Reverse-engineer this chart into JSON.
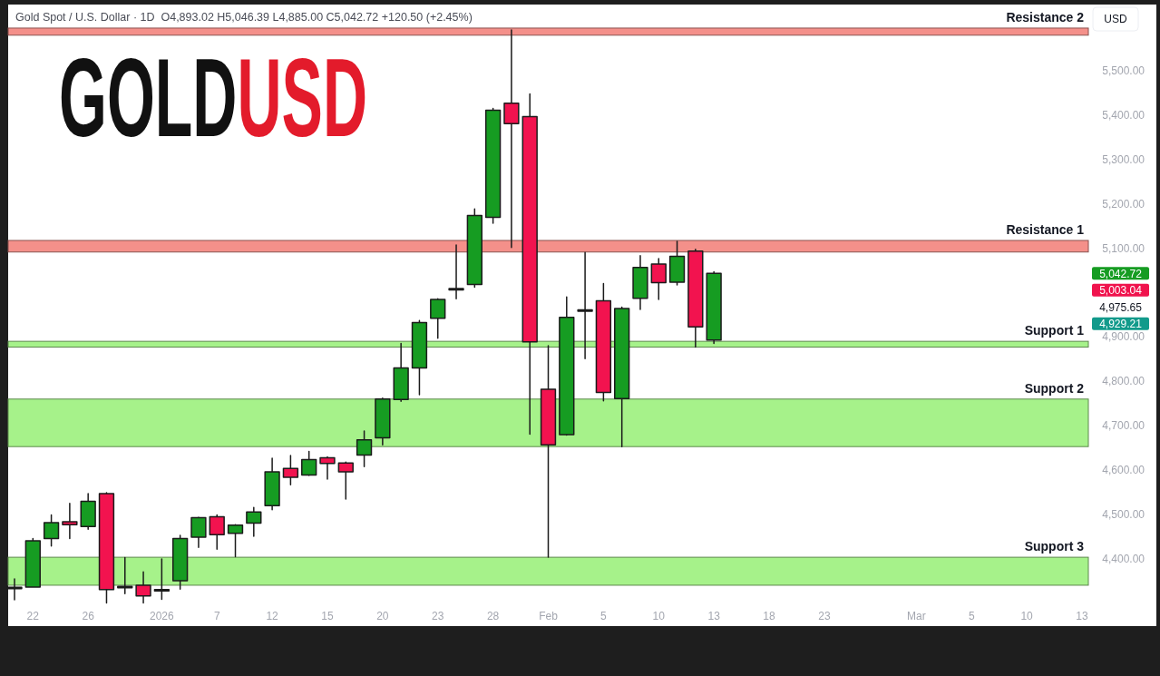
{
  "chart_data": {
    "type": "candlestick",
    "title": "GOLDUSD",
    "subtitle": "Gold Spot / U.S. Dollar · 1D  O4,893.02 H5,046.39 L4,885.00 C5,042.72 +120.50 (+2.45%)",
    "ylabel": "USD",
    "categories": [
      null,
      "22",
      null,
      null,
      "26",
      null,
      null,
      null,
      "2026",
      null,
      null,
      "7",
      null,
      null,
      "12",
      null,
      null,
      "15",
      null,
      null,
      "20",
      null,
      null,
      "23",
      null,
      null,
      "28",
      null,
      null,
      "Feb",
      null,
      null,
      "5",
      null,
      null,
      "10",
      null,
      null,
      "13",
      null,
      null,
      "18",
      null,
      null,
      "23",
      null,
      null,
      null,
      null,
      "Mar",
      null,
      null,
      "5",
      null,
      null,
      "10",
      null,
      null,
      "13"
    ],
    "ohlc": [
      [
        4334,
        4355,
        4308,
        4336
      ],
      [
        4337,
        4446,
        4337,
        4441
      ],
      [
        4446,
        4499,
        4429,
        4482
      ],
      [
        4484,
        4525,
        4446,
        4477
      ],
      [
        4473,
        4547,
        4467,
        4530
      ],
      [
        4547,
        4549,
        4301,
        4331
      ],
      [
        4338,
        4403,
        4322,
        4336
      ],
      [
        4341,
        4371,
        4301,
        4317
      ],
      [
        4330,
        4400,
        4309,
        4329
      ],
      [
        4351,
        4453,
        4332,
        4446
      ],
      [
        4449,
        4494,
        4426,
        4493
      ],
      [
        4495,
        4499,
        4422,
        4455
      ],
      [
        4458,
        4477,
        4405,
        4476
      ],
      [
        4481,
        4516,
        4451,
        4506
      ],
      [
        4520,
        4627,
        4511,
        4596
      ],
      [
        4604,
        4633,
        4567,
        4584
      ],
      [
        4589,
        4642,
        4588,
        4624
      ],
      [
        4628,
        4630,
        4580,
        4615
      ],
      [
        4616,
        4618,
        4535,
        4596
      ],
      [
        4634,
        4688,
        4608,
        4668
      ],
      [
        4673,
        4762,
        4657,
        4760
      ],
      [
        4759,
        4885,
        4755,
        4830
      ],
      [
        4830,
        4937,
        4770,
        4932
      ],
      [
        4942,
        4986,
        4897,
        4984
      ],
      [
        5008,
        5107,
        4986,
        5006
      ],
      [
        5018,
        5188,
        5012,
        5173
      ],
      [
        5169,
        5414,
        5156,
        5410
      ],
      [
        5426,
        5591,
        5101,
        5380
      ],
      [
        5396,
        5447,
        4681,
        4889
      ],
      [
        4782,
        4880,
        4404,
        4657
      ],
      [
        4680,
        4990,
        4679,
        4944
      ],
      [
        4960,
        5090,
        4851,
        4958
      ],
      [
        4981,
        5020,
        4756,
        4775
      ],
      [
        4761,
        4967,
        4653,
        4964
      ],
      [
        4987,
        5083,
        4962,
        5056
      ],
      [
        5064,
        5076,
        4984,
        5022
      ],
      [
        5023,
        5115,
        5017,
        5081
      ],
      [
        5093,
        5097,
        4877,
        4922.22
      ],
      [
        4893.02,
        5046.39,
        4885.0,
        5042.72
      ],
      null,
      null,
      null,
      null,
      null,
      null,
      null,
      null,
      null,
      null,
      null,
      null,
      null,
      null,
      null,
      null,
      null,
      null,
      null,
      null
    ],
    "colors": [
      "#3a3a3a",
      "#169c22",
      "#169c22",
      "#f2134f",
      "#169c22",
      "#f2134f",
      "#3a3a3a",
      "#f2134f",
      "#3a3a3a",
      "#169c22",
      "#169c22",
      "#f2134f",
      "#169c22",
      "#169c22",
      "#169c22",
      "#f2134f",
      "#169c22",
      "#f2134f",
      "#f2134f",
      "#169c22",
      "#169c22",
      "#169c22",
      "#169c22",
      "#169c22",
      "#3a3a3a",
      "#169c22",
      "#169c22",
      "#f2134f",
      "#f2134f",
      "#f2134f",
      "#169c22",
      "#3a3a3a",
      "#f2134f",
      "#169c22",
      "#169c22",
      "#f2134f",
      "#169c22",
      "#f2134f",
      "#169c22",
      null,
      null,
      null,
      null,
      null,
      null,
      null,
      null,
      null,
      null,
      null,
      null,
      null,
      null,
      null,
      null,
      null,
      null,
      null,
      null
    ],
    "ylim": [
      4249,
      5648
    ],
    "yticks": [
      {
        "value": 4400,
        "label": "4,400.00"
      },
      {
        "value": 4500,
        "label": "4,500.00"
      },
      {
        "value": 4600,
        "label": "4,600.00"
      },
      {
        "value": 4700,
        "label": "4,700.00"
      },
      {
        "value": 4800,
        "label": "4,800.00"
      },
      {
        "value": 4900,
        "label": "4,900.00"
      },
      {
        "value": 5100,
        "label": "5,100.00"
      },
      {
        "value": 5200,
        "label": "5,200.00"
      },
      {
        "value": 5300,
        "label": "5,300.00"
      },
      {
        "value": 5400,
        "label": "5,400.00"
      },
      {
        "value": 5500,
        "label": "5,500.00"
      }
    ],
    "bands": [
      {
        "axis": "y",
        "from": 4341,
        "to": 4404,
        "label": "Support 3",
        "color": "#a6f28a"
      },
      {
        "axis": "y",
        "from": 5579,
        "to": 5595,
        "label": "Resistance 2",
        "color": "#f4908a"
      },
      {
        "axis": "y",
        "from": 5091,
        "to": 5117,
        "label": "Resistance 1",
        "color": "#f4908a"
      },
      {
        "axis": "y",
        "from": 4653,
        "to": 4760,
        "label": "Support 2",
        "color": "#a6f28a"
      },
      {
        "axis": "y",
        "from": 4877,
        "to": 4890,
        "label": "Support 1",
        "color": "#a6f28a"
      }
    ],
    "annotations": [
      "5,042.72",
      "5,003.04",
      "4,975.65",
      "4,929.21"
    ]
  }
}
